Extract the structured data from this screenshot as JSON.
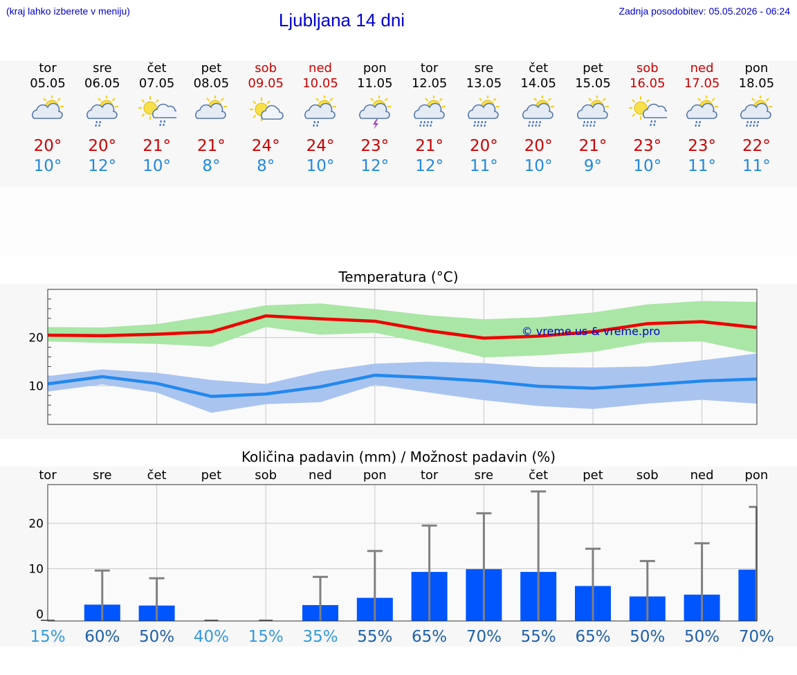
{
  "header": {
    "menu_hint": "(kraj lahko izberete v meniju)",
    "title": "Ljubljana 14 dni",
    "updated": "Zadnja posodobitev: 05.05.2026 - 06:24"
  },
  "days": [
    {
      "name": "tor",
      "date": "05.05",
      "weekend": false,
      "tmax": "20°",
      "tmin": "10°",
      "icon": "cloudy-sun-icon"
    },
    {
      "name": "sre",
      "date": "06.05",
      "weekend": false,
      "tmax": "20°",
      "tmin": "12°",
      "icon": "rain-cloud-sun-icon"
    },
    {
      "name": "čet",
      "date": "07.05",
      "weekend": false,
      "tmax": "21°",
      "tmin": "10°",
      "icon": "sun-rain-cloud-icon"
    },
    {
      "name": "pet",
      "date": "08.05",
      "weekend": false,
      "tmax": "21°",
      "tmin": "8°",
      "icon": "cloudy-sun-icon"
    },
    {
      "name": "sob",
      "date": "09.05",
      "weekend": true,
      "tmax": "24°",
      "tmin": "8°",
      "icon": "sun-small-cloud-icon"
    },
    {
      "name": "ned",
      "date": "10.05",
      "weekend": true,
      "tmax": "24°",
      "tmin": "10°",
      "icon": "rain-cloud-sun-icon"
    },
    {
      "name": "pon",
      "date": "11.05",
      "weekend": false,
      "tmax": "23°",
      "tmin": "12°",
      "icon": "thunderstorm-sun-icon"
    },
    {
      "name": "tor",
      "date": "12.05",
      "weekend": false,
      "tmax": "21°",
      "tmin": "12°",
      "icon": "heavy-rain-cloud-sun-icon"
    },
    {
      "name": "sre",
      "date": "13.05",
      "weekend": false,
      "tmax": "20°",
      "tmin": "11°",
      "icon": "heavy-rain-cloud-sun-icon"
    },
    {
      "name": "čet",
      "date": "14.05",
      "weekend": false,
      "tmax": "20°",
      "tmin": "10°",
      "icon": "heavy-rain-cloud-sun-icon"
    },
    {
      "name": "pet",
      "date": "15.05",
      "weekend": false,
      "tmax": "21°",
      "tmin": "9°",
      "icon": "heavy-rain-cloud-sun-icon"
    },
    {
      "name": "sob",
      "date": "16.05",
      "weekend": true,
      "tmax": "23°",
      "tmin": "10°",
      "icon": "sun-rain-cloud-icon"
    },
    {
      "name": "ned",
      "date": "17.05",
      "weekend": true,
      "tmax": "23°",
      "tmin": "11°",
      "icon": "rain-cloud-sun-icon"
    },
    {
      "name": "pon",
      "date": "18.05",
      "weekend": false,
      "tmax": "22°",
      "tmin": "11°",
      "icon": "heavy-rain-cloud-sun-icon"
    }
  ],
  "colors": {
    "tmax_line": "#ee0000",
    "tmax_band": "#aae6a6",
    "tmin_line": "#2288ee",
    "tmin_band": "#aac4f0",
    "precip_bar": "#0055ff",
    "error_bar": "#808080"
  },
  "chart_data": [
    {
      "type": "line",
      "title": "Temperatura (°C)",
      "watermark": "© vreme.us & vreme.pro",
      "ylim": [
        2,
        30
      ],
      "yticks": [
        10,
        20
      ],
      "x": [
        "05.05",
        "06.05",
        "07.05",
        "08.05",
        "09.05",
        "10.05",
        "11.05",
        "12.05",
        "13.05",
        "14.05",
        "15.05",
        "16.05",
        "17.05",
        "18.05"
      ],
      "series": [
        {
          "values": [
            20.5,
            20.4,
            20.7,
            21.2,
            24.5,
            23.9,
            23.4,
            21.4,
            19.9,
            20.3,
            21.2,
            22.9,
            23.3,
            22.1
          ],
          "band_high": [
            22.2,
            22.1,
            22.8,
            24.6,
            26.7,
            27.1,
            25.9,
            24.6,
            23.8,
            24.2,
            25.2,
            26.9,
            27.6,
            27.4
          ],
          "band_low": [
            19.2,
            18.9,
            18.7,
            18.1,
            22.2,
            20.6,
            21.0,
            18.7,
            15.9,
            16.3,
            17.0,
            19.0,
            19.2,
            16.8
          ]
        },
        {
          "values": [
            10.4,
            11.9,
            10.5,
            7.8,
            8.3,
            9.8,
            12.2,
            11.7,
            11.0,
            9.9,
            9.5,
            10.2,
            11.0,
            11.4
          ],
          "band_high": [
            12.0,
            13.4,
            12.7,
            11.2,
            10.4,
            13.0,
            14.6,
            15.0,
            14.7,
            13.9,
            13.8,
            14.0,
            15.3,
            16.7
          ],
          "band_low": [
            8.8,
            10.3,
            8.6,
            4.4,
            6.2,
            6.6,
            10.2,
            8.6,
            7.0,
            5.8,
            5.2,
            6.3,
            7.1,
            6.3
          ]
        }
      ]
    },
    {
      "type": "bar",
      "title": "Količina padavin (mm) / Možnost padavin (%)",
      "categories": [
        "tor",
        "sre",
        "čet",
        "pet",
        "sob",
        "ned",
        "pon",
        "tor",
        "sre",
        "čet",
        "pet",
        "sob",
        "ned",
        "pon"
      ],
      "ylim": [
        -1.5,
        28.5
      ],
      "yticks": [
        0,
        10,
        20
      ],
      "values": [
        0,
        2.1,
        1.9,
        0,
        0,
        2.0,
        3.6,
        9.3,
        9.9,
        9.3,
        6.2,
        3.9,
        4.3,
        9.8
      ],
      "error_high": [
        0,
        9.6,
        7.9,
        0,
        0,
        8.2,
        13.9,
        19.5,
        22.2,
        27.0,
        14.4,
        11.7,
        15.6,
        23.6
      ],
      "chance": [
        "15%",
        "60%",
        "50%",
        "40%",
        "15%",
        "35%",
        "55%",
        "65%",
        "70%",
        "55%",
        "65%",
        "50%",
        "50%",
        "70%"
      ],
      "chance_values": [
        15,
        60,
        50,
        40,
        15,
        35,
        55,
        65,
        70,
        55,
        65,
        50,
        50,
        70
      ]
    }
  ]
}
